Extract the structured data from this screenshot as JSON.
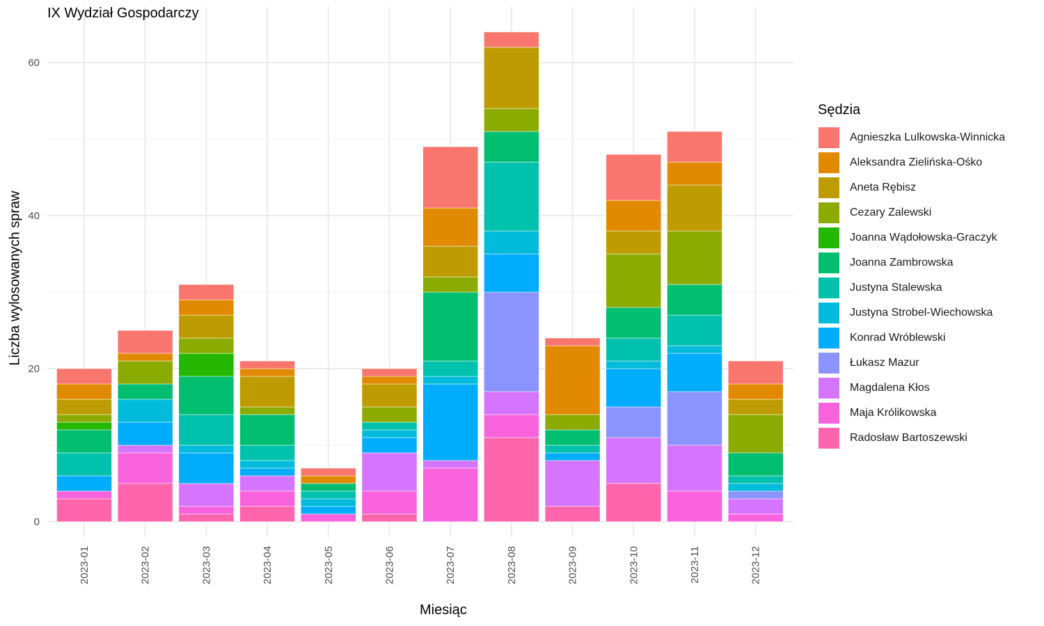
{
  "chart_data": {
    "type": "bar",
    "stacked": true,
    "title": "IX Wydział Gospodarczy",
    "xlabel": "Miesiąc",
    "ylabel": "Liczba wylosowanych spraw",
    "ylim": [
      0,
      64
    ],
    "yticks": [
      0,
      20,
      40,
      60
    ],
    "grid": true,
    "legend_title": "Sędzia",
    "legend_position": "right",
    "categories": [
      "2023-01",
      "2023-02",
      "2023-03",
      "2023-04",
      "2023-05",
      "2023-06",
      "2023-07",
      "2023-08",
      "2023-09",
      "2023-10",
      "2023-11",
      "2023-12"
    ],
    "series": [
      {
        "name": "Agnieszka Lulkowska-Winnicka",
        "color": "#F8766D",
        "values": [
          2,
          3,
          2,
          1,
          1,
          1,
          8,
          2,
          1,
          6,
          4,
          3
        ]
      },
      {
        "name": "Aleksandra Zielińska-Ośko",
        "color": "#E18A00",
        "values": [
          2,
          1,
          2,
          1,
          1,
          1,
          5,
          0,
          9,
          4,
          3,
          2
        ]
      },
      {
        "name": "Aneta Rębisz",
        "color": "#BE9C00",
        "values": [
          2,
          0,
          3,
          4,
          0,
          3,
          4,
          8,
          0,
          3,
          6,
          2
        ]
      },
      {
        "name": "Cezary Zalewski",
        "color": "#8CAB00",
        "values": [
          1,
          3,
          2,
          1,
          0,
          2,
          2,
          3,
          2,
          7,
          7,
          5
        ]
      },
      {
        "name": "Joanna Wądołowska-Graczyk",
        "color": "#24B700",
        "values": [
          1,
          0,
          3,
          0,
          0,
          0,
          0,
          0,
          0,
          0,
          0,
          0
        ]
      },
      {
        "name": "Joanna Zambrowska",
        "color": "#00BE70",
        "values": [
          3,
          2,
          5,
          4,
          1,
          0,
          9,
          4,
          2,
          4,
          4,
          3
        ]
      },
      {
        "name": "Justyna Stalewska",
        "color": "#00C1AB",
        "values": [
          3,
          0,
          4,
          2,
          1,
          1,
          2,
          9,
          1,
          3,
          4,
          1
        ]
      },
      {
        "name": "Justyna Strobel-Wiechowska",
        "color": "#00BBDA",
        "values": [
          0,
          3,
          1,
          1,
          1,
          1,
          1,
          3,
          0,
          1,
          1,
          1
        ]
      },
      {
        "name": "Konrad Wróblewski",
        "color": "#00ACFC",
        "values": [
          2,
          3,
          4,
          1,
          1,
          2,
          10,
          5,
          1,
          5,
          5,
          0
        ]
      },
      {
        "name": "Łukasz Mazur",
        "color": "#8B93FF",
        "values": [
          0,
          0,
          0,
          0,
          0,
          0,
          0,
          13,
          0,
          4,
          7,
          1
        ]
      },
      {
        "name": "Magdalena Kłos",
        "color": "#D575FE",
        "values": [
          0,
          1,
          3,
          2,
          0,
          5,
          1,
          3,
          6,
          6,
          6,
          2
        ]
      },
      {
        "name": "Maja Królikowska",
        "color": "#F962DD",
        "values": [
          1,
          4,
          1,
          2,
          1,
          3,
          7,
          3,
          0,
          0,
          4,
          1
        ]
      },
      {
        "name": "Radosław Bartoszewski",
        "color": "#FF65AC",
        "values": [
          3,
          5,
          1,
          2,
          0,
          1,
          0,
          11,
          2,
          5,
          0,
          0
        ]
      }
    ]
  }
}
